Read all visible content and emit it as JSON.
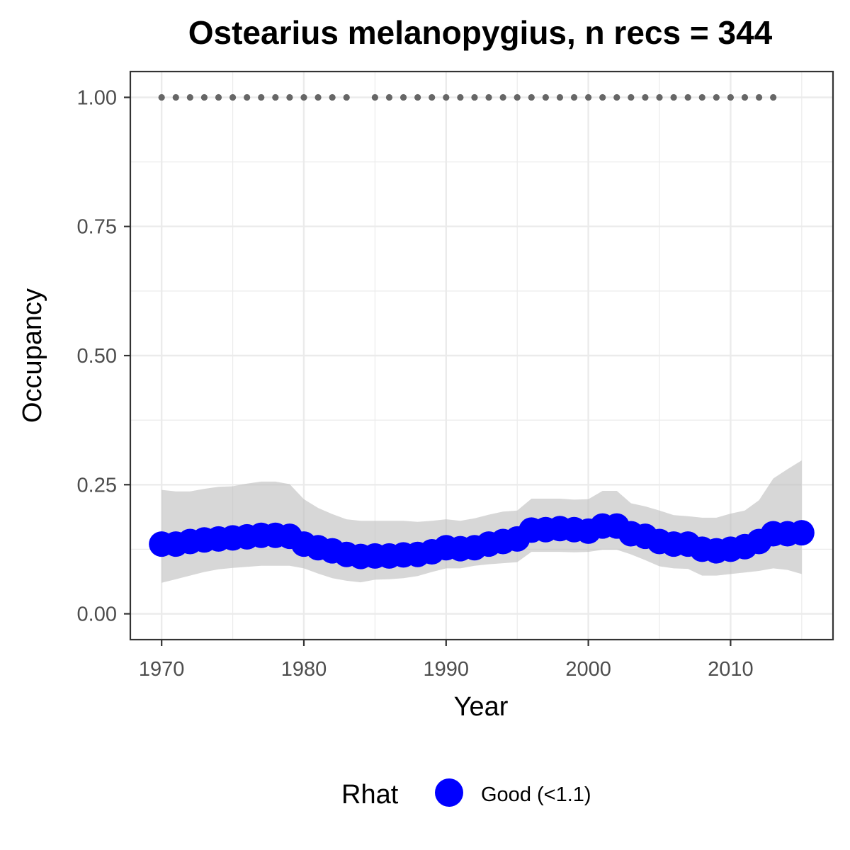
{
  "chart_data": {
    "type": "line",
    "title": "Ostearius melanopygius, n recs = 344",
    "xlabel": "Year",
    "ylabel": "Occupancy",
    "xlim": [
      1967.8,
      2017.2
    ],
    "ylim": [
      -0.05,
      1.05
    ],
    "x_ticks": [
      1970,
      1980,
      1990,
      2000,
      2010
    ],
    "x_tick_labels": [
      "1970",
      "1980",
      "1990",
      "2000",
      "2010"
    ],
    "x_minor_ticks": [
      1975,
      1985,
      1995,
      2005,
      2015
    ],
    "y_ticks": [
      0,
      0.25,
      0.5,
      0.75,
      1.0
    ],
    "y_tick_labels": [
      "0.00",
      "0.25",
      "0.50",
      "0.75",
      "1.00"
    ],
    "y_minor_ticks": [
      0.125,
      0.375,
      0.625,
      0.875
    ],
    "grid": true,
    "series": [
      {
        "name": "Good (<1.1)",
        "color": "#0000ff",
        "x": [
          1970,
          1971,
          1972,
          1973,
          1974,
          1975,
          1976,
          1977,
          1978,
          1979,
          1980,
          1981,
          1982,
          1983,
          1984,
          1985,
          1986,
          1987,
          1988,
          1989,
          1990,
          1991,
          1992,
          1993,
          1994,
          1995,
          1996,
          1997,
          1998,
          1999,
          2000,
          2001,
          2002,
          2003,
          2004,
          2005,
          2006,
          2007,
          2008,
          2009,
          2010,
          2011,
          2012,
          2013,
          2014,
          2015
        ],
        "y": [
          0.135,
          0.135,
          0.14,
          0.143,
          0.145,
          0.147,
          0.149,
          0.152,
          0.152,
          0.15,
          0.135,
          0.128,
          0.122,
          0.115,
          0.111,
          0.112,
          0.112,
          0.114,
          0.115,
          0.12,
          0.128,
          0.126,
          0.128,
          0.135,
          0.14,
          0.145,
          0.162,
          0.163,
          0.165,
          0.163,
          0.16,
          0.17,
          0.17,
          0.155,
          0.15,
          0.14,
          0.135,
          0.135,
          0.125,
          0.122,
          0.125,
          0.13,
          0.14,
          0.155,
          0.155,
          0.157
        ]
      }
    ],
    "ci_band": {
      "color": "#bebebe",
      "x": [
        1970,
        1971,
        1972,
        1973,
        1974,
        1975,
        1976,
        1977,
        1978,
        1979,
        1980,
        1981,
        1982,
        1983,
        1984,
        1985,
        1986,
        1987,
        1988,
        1989,
        1990,
        1991,
        1992,
        1993,
        1994,
        1995,
        1996,
        1997,
        1998,
        1999,
        2000,
        2001,
        2002,
        2003,
        2004,
        2005,
        2006,
        2007,
        2008,
        2009,
        2010,
        2011,
        2012,
        2013,
        2014,
        2015
      ],
      "lower": [
        0.06,
        0.067,
        0.074,
        0.081,
        0.086,
        0.089,
        0.091,
        0.093,
        0.093,
        0.093,
        0.088,
        0.078,
        0.069,
        0.064,
        0.061,
        0.066,
        0.067,
        0.069,
        0.073,
        0.081,
        0.088,
        0.088,
        0.093,
        0.096,
        0.098,
        0.1,
        0.12,
        0.12,
        0.12,
        0.119,
        0.12,
        0.124,
        0.124,
        0.115,
        0.104,
        0.092,
        0.088,
        0.087,
        0.074,
        0.074,
        0.077,
        0.08,
        0.083,
        0.088,
        0.085,
        0.077
      ],
      "upper": [
        0.24,
        0.237,
        0.237,
        0.242,
        0.246,
        0.247,
        0.252,
        0.256,
        0.256,
        0.251,
        0.222,
        0.205,
        0.193,
        0.183,
        0.18,
        0.18,
        0.18,
        0.18,
        0.178,
        0.18,
        0.183,
        0.18,
        0.185,
        0.192,
        0.198,
        0.2,
        0.223,
        0.223,
        0.223,
        0.221,
        0.222,
        0.238,
        0.238,
        0.214,
        0.208,
        0.2,
        0.191,
        0.189,
        0.186,
        0.186,
        0.194,
        0.2,
        0.22,
        0.262,
        0.28,
        0.297
      ]
    },
    "records": {
      "color": "#666666",
      "y": 1.0,
      "x": [
        1970,
        1971,
        1972,
        1973,
        1974,
        1975,
        1976,
        1977,
        1978,
        1979,
        1980,
        1981,
        1982,
        1983,
        1985,
        1986,
        1987,
        1988,
        1989,
        1990,
        1991,
        1992,
        1993,
        1994,
        1995,
        1996,
        1997,
        1998,
        1999,
        2000,
        2001,
        2002,
        2003,
        2004,
        2005,
        2006,
        2007,
        2008,
        2009,
        2010,
        2011,
        2012,
        2013
      ]
    },
    "legend": {
      "title": "Rhat",
      "position": "bottom",
      "items": [
        {
          "label": "Good (<1.1)",
          "color": "#0000ff"
        }
      ]
    }
  }
}
